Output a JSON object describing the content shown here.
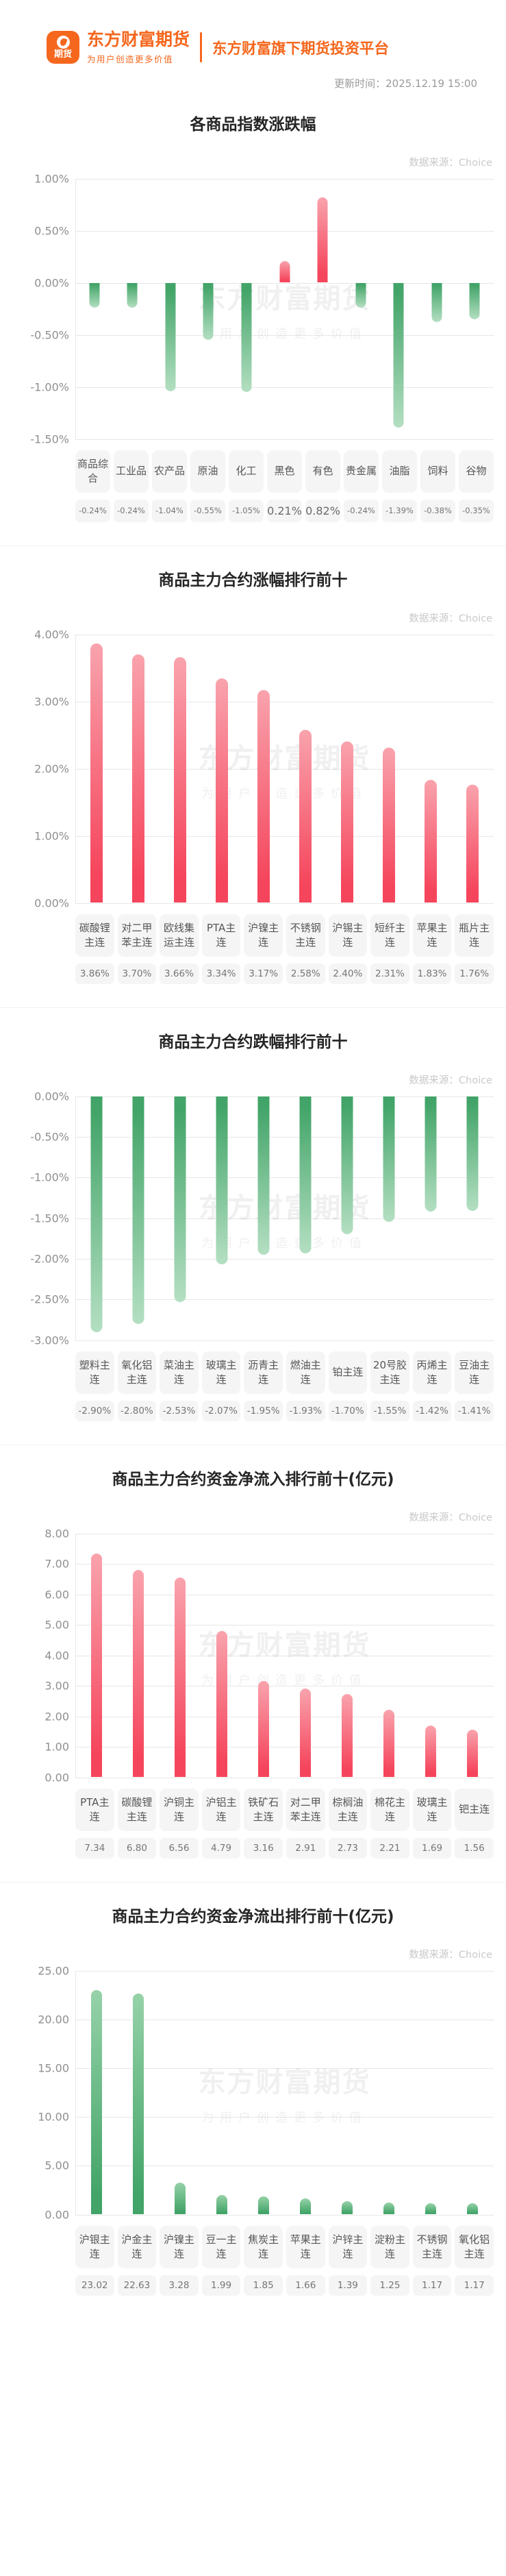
{
  "header": {
    "logo_badge": "期货",
    "brand_name": "东方财富期货",
    "brand_slogan": "为用户创造更多价值",
    "platform_title": "东方财富旗下期货投资平台",
    "update_time": "更新时间：2025.12.19 15:00"
  },
  "watermark": {
    "line1": "东方财富期货",
    "line2": "为用户创造更多价值"
  },
  "source_label": "数据来源：Choice",
  "colors": {
    "brand_orange": "#f5671d",
    "up_red_deep": "#f5455c",
    "up_red_light": "#f9a3ad",
    "down_green_deep": "#42a468",
    "down_green_light": "#b4dfc2"
  },
  "chart_data": [
    {
      "type": "bar",
      "title": "各商品指数涨跌幅",
      "source": "数据来源：Choice",
      "bar_color_mode": "by-sign",
      "categories": [
        "商品综合",
        "工业品",
        "农产品",
        "原油",
        "化工",
        "黑色",
        "有色",
        "贵金属",
        "油脂",
        "饲料",
        "谷物"
      ],
      "values": [
        -0.24,
        -0.24,
        -1.04,
        -0.55,
        -1.05,
        0.21,
        0.82,
        -0.24,
        -1.39,
        -0.38,
        -0.35
      ],
      "value_labels": [
        "-0.24%",
        "-0.24%",
        "-1.04%",
        "-0.55%",
        "-1.05%",
        "0.21%",
        "0.82%",
        "-0.24%",
        "-1.39%",
        "-0.38%",
        "-0.35%"
      ],
      "ylim": [
        -1.5,
        1.0
      ],
      "ytick_values": [
        1.0,
        0.5,
        0.0,
        -0.5,
        -1.0,
        -1.5
      ],
      "ytick_labels": [
        "1.00%",
        "0.50%",
        "0.00%",
        "-0.50%",
        "-1.00%",
        "-1.50%"
      ],
      "grid": true,
      "legend": "none",
      "unit": "%"
    },
    {
      "type": "bar",
      "title": "商品主力合约涨幅排行前十",
      "source": "数据来源：Choice",
      "bar_color_mode": "red",
      "categories": [
        "碳酸锂主连",
        "对二甲苯主连",
        "欧线集运主连",
        "PTA主连",
        "沪镍主连",
        "不锈钢主连",
        "沪锡主连",
        "短纤主连",
        "苹果主连",
        "瓶片主连"
      ],
      "values": [
        3.86,
        3.7,
        3.66,
        3.34,
        3.17,
        2.58,
        2.4,
        2.31,
        1.83,
        1.76
      ],
      "value_labels": [
        "3.86%",
        "3.70%",
        "3.66%",
        "3.34%",
        "3.17%",
        "2.58%",
        "2.40%",
        "2.31%",
        "1.83%",
        "1.76%"
      ],
      "ylim": [
        0,
        4.0
      ],
      "ytick_values": [
        4.0,
        3.0,
        2.0,
        1.0,
        0.0
      ],
      "ytick_labels": [
        "4.00%",
        "3.00%",
        "2.00%",
        "1.00%",
        "0.00%"
      ],
      "grid": true,
      "legend": "none",
      "unit": "%"
    },
    {
      "type": "bar",
      "title": "商品主力合约跌幅排行前十",
      "source": "数据来源：Choice",
      "bar_color_mode": "green",
      "categories": [
        "塑料主连",
        "氧化铝主连",
        "菜油主连",
        "玻璃主连",
        "沥青主连",
        "燃油主连",
        "铂主连",
        "20号胶主连",
        "丙烯主连",
        "豆油主连"
      ],
      "values": [
        -2.9,
        -2.8,
        -2.53,
        -2.07,
        -1.95,
        -1.93,
        -1.7,
        -1.55,
        -1.42,
        -1.41
      ],
      "value_labels": [
        "-2.90%",
        "-2.80%",
        "-2.53%",
        "-2.07%",
        "-1.95%",
        "-1.93%",
        "-1.70%",
        "-1.55%",
        "-1.42%",
        "-1.41%"
      ],
      "ylim": [
        -3.0,
        0
      ],
      "ytick_values": [
        0.0,
        -0.5,
        -1.0,
        -1.5,
        -2.0,
        -2.5,
        -3.0
      ],
      "ytick_labels": [
        "0.00%",
        "-0.50%",
        "-1.00%",
        "-1.50%",
        "-2.00%",
        "-2.50%",
        "-3.00%"
      ],
      "grid": true,
      "legend": "none",
      "unit": "%"
    },
    {
      "type": "bar",
      "title": "商品主力合约资金净流入排行前十(亿元)",
      "source": "数据来源：Choice",
      "bar_color_mode": "red",
      "categories": [
        "PTA主连",
        "碳酸锂主连",
        "沪铜主连",
        "沪铝主连",
        "铁矿石主连",
        "对二甲苯主连",
        "棕榈油主连",
        "棉花主连",
        "玻璃主连",
        "钯主连"
      ],
      "values": [
        7.34,
        6.8,
        6.56,
        4.79,
        3.16,
        2.91,
        2.73,
        2.21,
        1.69,
        1.56
      ],
      "value_labels": [
        "7.34",
        "6.80",
        "6.56",
        "4.79",
        "3.16",
        "2.91",
        "2.73",
        "2.21",
        "1.69",
        "1.56"
      ],
      "ylim": [
        0,
        8.0
      ],
      "ytick_values": [
        8.0,
        7.0,
        6.0,
        5.0,
        4.0,
        3.0,
        2.0,
        1.0,
        0.0
      ],
      "ytick_labels": [
        "8.00",
        "7.00",
        "6.00",
        "5.00",
        "4.00",
        "3.00",
        "2.00",
        "1.00",
        "0.00"
      ],
      "grid": true,
      "legend": "none",
      "unit": "亿元"
    },
    {
      "type": "bar",
      "title": "商品主力合约资金净流出排行前十(亿元)",
      "source": "数据来源：Choice",
      "bar_color_mode": "green-up",
      "categories": [
        "沪银主连",
        "沪金主连",
        "沪镍主连",
        "豆一主连",
        "焦炭主连",
        "苹果主连",
        "沪锌主连",
        "淀粉主连",
        "不锈钢主连",
        "氧化铝主连"
      ],
      "values": [
        23.02,
        22.63,
        3.28,
        1.99,
        1.85,
        1.66,
        1.39,
        1.25,
        1.17,
        1.17
      ],
      "value_labels": [
        "23.02",
        "22.63",
        "3.28",
        "1.99",
        "1.85",
        "1.66",
        "1.39",
        "1.25",
        "1.17",
        "1.17"
      ],
      "ylim": [
        0,
        25.0
      ],
      "ytick_values": [
        25.0,
        20.0,
        15.0,
        10.0,
        5.0,
        0.0
      ],
      "ytick_labels": [
        "25.00",
        "20.00",
        "15.00",
        "10.00",
        "5.00",
        "0.00"
      ],
      "grid": true,
      "legend": "none",
      "unit": "亿元"
    }
  ]
}
